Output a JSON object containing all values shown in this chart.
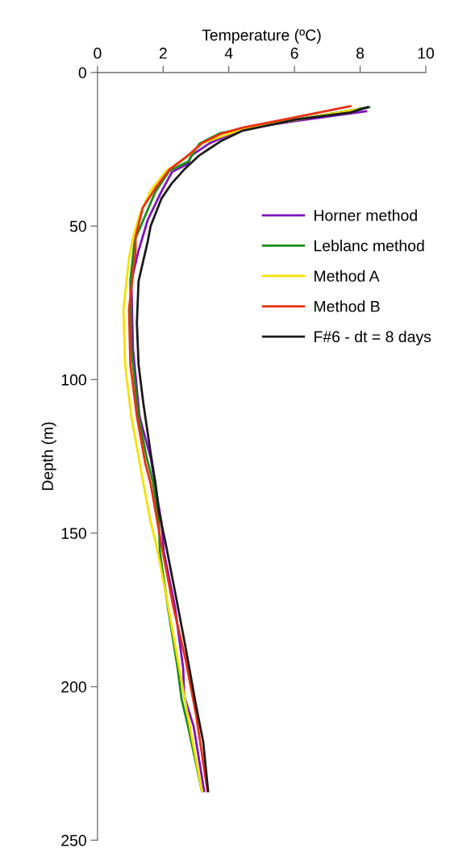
{
  "chart_data": {
    "type": "line",
    "xlabel": "Temperature (ºC)",
    "ylabel": "Depth (m)",
    "xlim": [
      0,
      10
    ],
    "xticks": [
      0,
      2,
      4,
      6,
      8,
      10
    ],
    "ylim": [
      250,
      0
    ],
    "yticks": [
      0,
      50,
      100,
      150,
      200,
      250
    ],
    "grid": false,
    "legend": "right",
    "marker": "none",
    "line_style": "solid",
    "series": [
      {
        "name": "Horner method",
        "color": "#8010c0",
        "x": [
          8.18,
          6.05,
          4.4,
          3.42,
          2.86,
          2.76,
          2.27,
          1.95,
          1.53,
          1.28,
          1.25,
          1.03,
          1.08,
          1.28,
          1.62,
          1.75,
          1.95,
          2.02,
          2.36,
          2.61,
          2.64,
          2.93,
          3.25
        ],
        "values": [
          12.6,
          15.8,
          18.4,
          23,
          27,
          29.7,
          32.4,
          38.7,
          48,
          57,
          58,
          68,
          90,
          112,
          125.5,
          134,
          146.5,
          156,
          174,
          194,
          203,
          213,
          234
        ]
      },
      {
        "name": "Leblanc method",
        "color": "#1a8c1a",
        "x": [
          8.28,
          6.05,
          3.75,
          3.1,
          2.76,
          2.19,
          1.77,
          1.13,
          1.0,
          1.03,
          1.25,
          1.5,
          1.7,
          1.87,
          1.9,
          2.14,
          2.44,
          2.56,
          2.76,
          3.18
        ],
        "values": [
          11.3,
          15.3,
          19.7,
          23.2,
          29,
          32,
          38.7,
          54.7,
          68,
          90,
          112,
          125.5,
          134,
          146.5,
          156,
          174,
          194,
          204,
          213,
          234
        ]
      },
      {
        "name": "Method A",
        "color": "#f5e000",
        "x": [
          7.9,
          4.4,
          3.2,
          2.6,
          2.1,
          1.62,
          1.3,
          1.1,
          0.96,
          0.79,
          0.84,
          1.03,
          1.25,
          1.4,
          1.62,
          1.77,
          1.87,
          2.12,
          2.44,
          2.76,
          3.18
        ],
        "values": [
          12,
          18.5,
          23,
          28.5,
          32,
          38.5,
          46,
          53,
          60.5,
          77,
          95,
          112,
          125,
          134,
          146.5,
          153,
          158,
          172,
          191,
          210,
          234
        ]
      },
      {
        "name": "Method B",
        "color": "#e83010",
        "x": [
          7.7,
          6.05,
          4.4,
          3.75,
          3.18,
          2.76,
          2.19,
          1.77,
          1.38,
          1.16,
          1.16,
          0.96,
          1.0,
          1.2,
          1.45,
          1.62,
          1.77,
          1.95,
          2.31,
          2.68,
          3.0,
          3.35
        ],
        "values": [
          11,
          14.5,
          18,
          20,
          23,
          27,
          31.6,
          37.6,
          44,
          53.5,
          58,
          77,
          95,
          112,
          127,
          134,
          143,
          154,
          174,
          191,
          209,
          234
        ]
      },
      {
        "name": "F#6 - dt = 8 days",
        "color": "#1a1a1a",
        "x": [
          8.23,
          7.7,
          6.05,
          4.4,
          3.75,
          3.1,
          2.64,
          2.27,
          1.95,
          1.62,
          1.53,
          1.25,
          1.2,
          1.25,
          1.4,
          1.62,
          1.77,
          1.87,
          2.07,
          2.36,
          2.68,
          3.0,
          3.22,
          3.37
        ],
        "values": [
          11.3,
          13,
          15.3,
          19,
          22.4,
          27,
          31.6,
          36,
          41,
          50,
          55,
          68,
          81.6,
          95,
          108,
          124,
          134,
          143,
          153,
          169,
          187,
          206,
          218,
          234
        ]
      }
    ]
  }
}
